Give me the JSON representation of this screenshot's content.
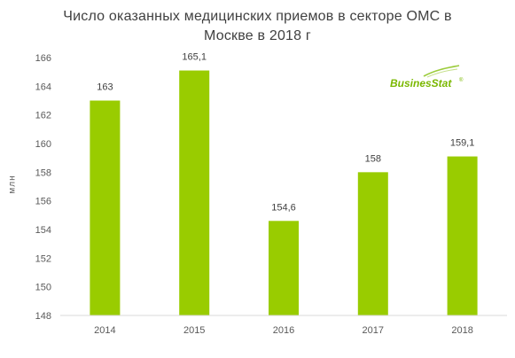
{
  "chart_data": {
    "type": "bar",
    "title": "Число оказанных медицинских приемов в секторе ОМС в Москве в 2018 г",
    "title_lines": [
      "Число оказанных медицинских приемов в секторе ОМС в",
      "Москве в 2018 г"
    ],
    "xlabel": "",
    "ylabel": "млн",
    "categories": [
      "2014",
      "2015",
      "2016",
      "2017",
      "2018"
    ],
    "values": [
      163,
      165.1,
      154.6,
      158,
      159.1
    ],
    "value_labels": [
      "163",
      "165,1",
      "154,6",
      "158",
      "159,1"
    ],
    "ylim": [
      148,
      166
    ],
    "yticks": [
      148,
      150,
      152,
      154,
      156,
      158,
      160,
      162,
      164,
      166
    ],
    "grid": false,
    "legend": "none",
    "bar_color": "#99cc00",
    "axis_color": "#d9d9d9"
  },
  "logo": {
    "text": "BusinesStat",
    "mark": "®",
    "color": "#7ab800"
  }
}
